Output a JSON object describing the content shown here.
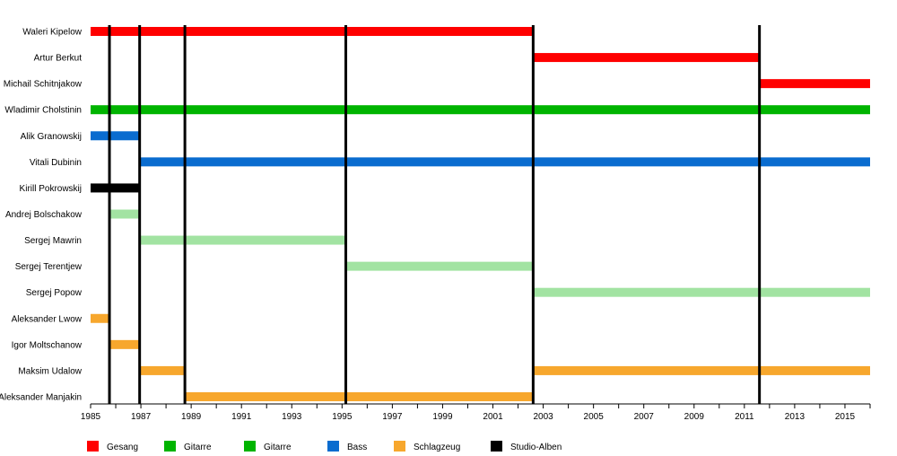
{
  "chart_data": {
    "type": "timeline",
    "title": "",
    "xlabel": "",
    "ylabel": "",
    "xlim": [
      1985,
      2016
    ],
    "x_ticks": [
      1985,
      1987,
      1989,
      1991,
      1993,
      1995,
      1997,
      1999,
      2001,
      2003,
      2005,
      2007,
      2009,
      2011,
      2013,
      2015
    ],
    "grid": false,
    "legend_position": "bottom",
    "colors": {
      "Gesang": "#ff0000",
      "Gitarre": "#00b400",
      "Gitarre 2": "#a2e3a2",
      "Bass": "#0a6ccf",
      "Schlagzeug": "#f7a72d",
      "Studio-Alben": "#000000"
    },
    "legend": [
      {
        "label": "Gesang",
        "color": "#ff0000"
      },
      {
        "label": "Gitarre",
        "color": "#00b400"
      },
      {
        "label": "Gitarre",
        "color": "#00b400"
      },
      {
        "label": "Bass",
        "color": "#0a6ccf"
      },
      {
        "label": "Schlagzeug",
        "color": "#f7a72d"
      },
      {
        "label": "Studio-Alben",
        "color": "#000000"
      }
    ],
    "members": [
      {
        "name": "Waleri Kipelow",
        "periods": [
          {
            "start": 1985.0,
            "end": 2002.6,
            "role": "Gesang"
          }
        ]
      },
      {
        "name": "Artur Berkut",
        "periods": [
          {
            "start": 2002.6,
            "end": 2011.6,
            "role": "Gesang"
          }
        ]
      },
      {
        "name": "Michail Schitnjakow",
        "periods": [
          {
            "start": 2011.6,
            "end": 2016.0,
            "role": "Gesang"
          }
        ]
      },
      {
        "name": "Wladimir Cholstinin",
        "periods": [
          {
            "start": 1985.0,
            "end": 2016.0,
            "role": "Gitarre"
          }
        ]
      },
      {
        "name": "Alik Granowskij",
        "periods": [
          {
            "start": 1985.0,
            "end": 1986.95,
            "role": "Bass"
          }
        ]
      },
      {
        "name": "Vitali Dubinin",
        "periods": [
          {
            "start": 1986.95,
            "end": 2016.0,
            "role": "Bass"
          }
        ]
      },
      {
        "name": "Kirill Pokrowskij",
        "periods": [
          {
            "start": 1985.0,
            "end": 1986.95,
            "role": "Studio-Alben"
          }
        ]
      },
      {
        "name": "Andrej Bolschakow",
        "periods": [
          {
            "start": 1985.75,
            "end": 1986.95,
            "role": "Gitarre 2"
          }
        ]
      },
      {
        "name": "Sergej Mawrin",
        "periods": [
          {
            "start": 1986.95,
            "end": 1995.15,
            "role": "Gitarre 2"
          }
        ]
      },
      {
        "name": "Sergej Terentjew",
        "periods": [
          {
            "start": 1995.15,
            "end": 2002.6,
            "role": "Gitarre 2"
          }
        ]
      },
      {
        "name": "Sergej Popow",
        "periods": [
          {
            "start": 2002.6,
            "end": 2016.0,
            "role": "Gitarre 2"
          }
        ]
      },
      {
        "name": "Aleksander Lwow",
        "periods": [
          {
            "start": 1985.0,
            "end": 1985.75,
            "role": "Schlagzeug"
          }
        ]
      },
      {
        "name": "Igor Moltschanow",
        "periods": [
          {
            "start": 1985.75,
            "end": 1986.95,
            "role": "Schlagzeug"
          }
        ]
      },
      {
        "name": "Maksim Udalow",
        "periods": [
          {
            "start": 1986.95,
            "end": 1988.75,
            "role": "Schlagzeug"
          },
          {
            "start": 2002.6,
            "end": 2016.0,
            "role": "Schlagzeug"
          }
        ]
      },
      {
        "name": "Aleksander Manjakin",
        "periods": [
          {
            "start": 1988.75,
            "end": 2002.6,
            "role": "Schlagzeug"
          }
        ]
      }
    ],
    "album_lines": [
      1985.75,
      1986.95,
      1988.75,
      1995.15,
      2002.6,
      2011.6
    ]
  }
}
